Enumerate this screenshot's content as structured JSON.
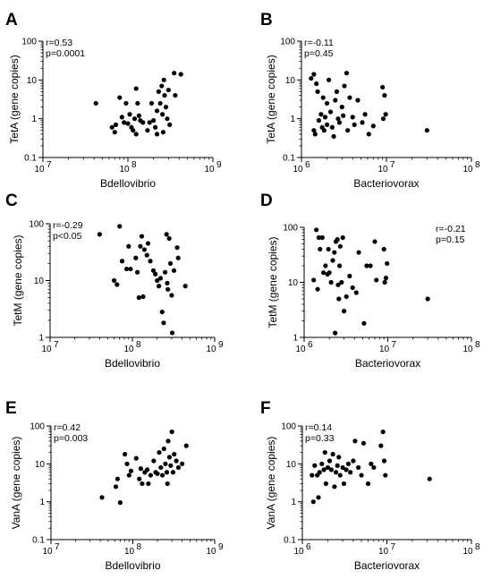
{
  "chart_data": [
    {
      "panel": "A",
      "type": "scatter",
      "xlabel": "Bdellovibrio",
      "ylabel": "TetA (gene copies)",
      "xscale": "log",
      "yscale": "log",
      "xlim": [
        10000000,
        1000000000
      ],
      "ylim": [
        0.1,
        100
      ],
      "xticks": [
        "10",
        "10",
        "10"
      ],
      "xtick_exponents": [
        "7",
        "8",
        "9"
      ],
      "yticks": [
        "100",
        "10",
        "1",
        "0.1"
      ],
      "stats": [
        "r=0.53",
        "p=0.0001"
      ],
      "stats_position": "top-left",
      "grid": false,
      "legend": "none",
      "points": [
        {
          "x": 42000000,
          "y": 2.5
        },
        {
          "x": 65000000,
          "y": 0.6
        },
        {
          "x": 70000000,
          "y": 0.45
        },
        {
          "x": 72000000,
          "y": 0.7
        },
        {
          "x": 80000000,
          "y": 3.5
        },
        {
          "x": 85000000,
          "y": 1.1
        },
        {
          "x": 90000000,
          "y": 0.8
        },
        {
          "x": 95000000,
          "y": 2.5
        },
        {
          "x": 100000000,
          "y": 0.75
        },
        {
          "x": 105000000,
          "y": 1.3
        },
        {
          "x": 110000000,
          "y": 0.6
        },
        {
          "x": 115000000,
          "y": 0.5
        },
        {
          "x": 120000000,
          "y": 1.0
        },
        {
          "x": 125000000,
          "y": 6.0
        },
        {
          "x": 125000000,
          "y": 0.4
        },
        {
          "x": 130000000,
          "y": 2.5
        },
        {
          "x": 135000000,
          "y": 1.2
        },
        {
          "x": 140000000,
          "y": 0.9
        },
        {
          "x": 150000000,
          "y": 0.8
        },
        {
          "x": 170000000,
          "y": 0.5
        },
        {
          "x": 180000000,
          "y": 0.8
        },
        {
          "x": 190000000,
          "y": 2.5
        },
        {
          "x": 200000000,
          "y": 0.9
        },
        {
          "x": 210000000,
          "y": 0.6
        },
        {
          "x": 220000000,
          "y": 1.6
        },
        {
          "x": 220000000,
          "y": 0.4
        },
        {
          "x": 230000000,
          "y": 5.0
        },
        {
          "x": 240000000,
          "y": 2.5
        },
        {
          "x": 250000000,
          "y": 7.0
        },
        {
          "x": 255000000,
          "y": 1.3
        },
        {
          "x": 260000000,
          "y": 0.45
        },
        {
          "x": 265000000,
          "y": 10.0
        },
        {
          "x": 270000000,
          "y": 4.0
        },
        {
          "x": 280000000,
          "y": 2.0
        },
        {
          "x": 290000000,
          "y": 1.0
        },
        {
          "x": 300000000,
          "y": 5.5
        },
        {
          "x": 310000000,
          "y": 0.7
        },
        {
          "x": 350000000,
          "y": 15.0
        },
        {
          "x": 360000000,
          "y": 4.0
        },
        {
          "x": 420000000,
          "y": 14.0
        }
      ]
    },
    {
      "panel": "B",
      "type": "scatter",
      "xlabel": "Bacteriovorax",
      "ylabel": "TetA (gene copies)",
      "xscale": "log",
      "yscale": "log",
      "xlim": [
        1000000,
        100000000
      ],
      "ylim": [
        0.1,
        100
      ],
      "xticks": [
        "10",
        "10",
        "10"
      ],
      "xtick_exponents": [
        "6",
        "7",
        "8"
      ],
      "yticks": [
        "100",
        "10",
        "1",
        "0.1"
      ],
      "stats": [
        "r=-0.11",
        "p=0.45"
      ],
      "stats_position": "top-left",
      "grid": false,
      "legend": "none",
      "points": [
        {
          "x": 1300000,
          "y": 11.0
        },
        {
          "x": 1400000,
          "y": 14.0
        },
        {
          "x": 1400000,
          "y": 0.5
        },
        {
          "x": 1450000,
          "y": 0.4
        },
        {
          "x": 1500000,
          "y": 8.0
        },
        {
          "x": 1550000,
          "y": 5.0
        },
        {
          "x": 1600000,
          "y": 0.9
        },
        {
          "x": 1700000,
          "y": 1.3
        },
        {
          "x": 1750000,
          "y": 0.6
        },
        {
          "x": 1800000,
          "y": 3.5
        },
        {
          "x": 1850000,
          "y": 0.5
        },
        {
          "x": 1900000,
          "y": 1.1
        },
        {
          "x": 2000000,
          "y": 2.5
        },
        {
          "x": 2000000,
          "y": 0.7
        },
        {
          "x": 2100000,
          "y": 10.0
        },
        {
          "x": 2200000,
          "y": 1.5
        },
        {
          "x": 2300000,
          "y": 0.6
        },
        {
          "x": 2400000,
          "y": 0.35
        },
        {
          "x": 2500000,
          "y": 3.0
        },
        {
          "x": 2600000,
          "y": 5.0
        },
        {
          "x": 2700000,
          "y": 1.0
        },
        {
          "x": 2800000,
          "y": 0.8
        },
        {
          "x": 3000000,
          "y": 2.0
        },
        {
          "x": 3100000,
          "y": 1.2
        },
        {
          "x": 3200000,
          "y": 7.0
        },
        {
          "x": 3400000,
          "y": 15.0
        },
        {
          "x": 3500000,
          "y": 0.5
        },
        {
          "x": 3700000,
          "y": 3.5
        },
        {
          "x": 4000000,
          "y": 1.1
        },
        {
          "x": 4200000,
          "y": 0.7
        },
        {
          "x": 4600000,
          "y": 3.0
        },
        {
          "x": 5200000,
          "y": 0.8
        },
        {
          "x": 5600000,
          "y": 1.3
        },
        {
          "x": 6200000,
          "y": 0.4
        },
        {
          "x": 7000000,
          "y": 0.65
        },
        {
          "x": 9000000,
          "y": 6.5
        },
        {
          "x": 9200000,
          "y": 1.0
        },
        {
          "x": 9500000,
          "y": 4.0
        },
        {
          "x": 9800000,
          "y": 1.3
        },
        {
          "x": 30000000,
          "y": 0.5
        }
      ]
    },
    {
      "panel": "C",
      "type": "scatter",
      "xlabel": "Bdellovibrio",
      "ylabel": "TetM (gene copies)",
      "xscale": "log",
      "yscale": "log",
      "xlim": [
        10000000,
        1000000000
      ],
      "ylim": [
        1,
        100
      ],
      "xticks": [
        "10",
        "10",
        "10"
      ],
      "xtick_exponents": [
        "7",
        "8",
        "9"
      ],
      "yticks": [
        "100",
        "10",
        "1"
      ],
      "stats": [
        "r=-0.29",
        "p<0.05"
      ],
      "stats_position": "top-left",
      "grid": false,
      "legend": "none",
      "points": [
        {
          "x": 40000000,
          "y": 65.0
        },
        {
          "x": 60000000,
          "y": 10.0
        },
        {
          "x": 65000000,
          "y": 8.5
        },
        {
          "x": 70000000,
          "y": 90.0
        },
        {
          "x": 75000000,
          "y": 22.0
        },
        {
          "x": 85000000,
          "y": 16.0
        },
        {
          "x": 90000000,
          "y": 40.0
        },
        {
          "x": 95000000,
          "y": 16.0
        },
        {
          "x": 110000000,
          "y": 25.0
        },
        {
          "x": 115000000,
          "y": 14.0
        },
        {
          "x": 120000000,
          "y": 5.0
        },
        {
          "x": 125000000,
          "y": 40.0
        },
        {
          "x": 130000000,
          "y": 60.0
        },
        {
          "x": 135000000,
          "y": 5.2
        },
        {
          "x": 140000000,
          "y": 35.0
        },
        {
          "x": 150000000,
          "y": 28.0
        },
        {
          "x": 155000000,
          "y": 45.0
        },
        {
          "x": 165000000,
          "y": 22.0
        },
        {
          "x": 180000000,
          "y": 15.0
        },
        {
          "x": 190000000,
          "y": 13.0
        },
        {
          "x": 200000000,
          "y": 10.0
        },
        {
          "x": 210000000,
          "y": 8.0
        },
        {
          "x": 220000000,
          "y": 11.0
        },
        {
          "x": 230000000,
          "y": 2.8
        },
        {
          "x": 240000000,
          "y": 1.8
        },
        {
          "x": 250000000,
          "y": 14.0
        },
        {
          "x": 260000000,
          "y": 65.0
        },
        {
          "x": 265000000,
          "y": 9.0
        },
        {
          "x": 270000000,
          "y": 7.0
        },
        {
          "x": 280000000,
          "y": 55.0
        },
        {
          "x": 290000000,
          "y": 20.0
        },
        {
          "x": 300000000,
          "y": 5.5
        },
        {
          "x": 305000000,
          "y": 1.2
        },
        {
          "x": 320000000,
          "y": 15.0
        },
        {
          "x": 350000000,
          "y": 38.0
        },
        {
          "x": 360000000,
          "y": 25.0
        },
        {
          "x": 440000000,
          "y": 8.0
        }
      ]
    },
    {
      "panel": "D",
      "type": "scatter",
      "xlabel": "Bacteriovorax",
      "ylabel": "TetM (gene copies)",
      "xscale": "log",
      "yscale": "log",
      "xlim": [
        1000000,
        100000000
      ],
      "ylim": [
        1,
        100
      ],
      "xticks": [
        "10",
        "10",
        "10"
      ],
      "xtick_exponents": [
        "6",
        "7",
        "8"
      ],
      "yticks": [
        "100",
        "10",
        "1"
      ],
      "stats": [
        "r=-0.21",
        "p=0.15"
      ],
      "stats_position": "top-right",
      "grid": false,
      "legend": "none",
      "points": [
        {
          "x": 1300000,
          "y": 11.0
        },
        {
          "x": 1400000,
          "y": 90.0
        },
        {
          "x": 1450000,
          "y": 7.5
        },
        {
          "x": 1500000,
          "y": 65.0
        },
        {
          "x": 1550000,
          "y": 40.0
        },
        {
          "x": 1650000,
          "y": 65.0
        },
        {
          "x": 1700000,
          "y": 15.0
        },
        {
          "x": 1800000,
          "y": 20.0
        },
        {
          "x": 1900000,
          "y": 14.0
        },
        {
          "x": 1950000,
          "y": 40.0
        },
        {
          "x": 2000000,
          "y": 15.0
        },
        {
          "x": 2100000,
          "y": 10.0
        },
        {
          "x": 2200000,
          "y": 25.0
        },
        {
          "x": 2300000,
          "y": 35.0
        },
        {
          "x": 2350000,
          "y": 1.2
        },
        {
          "x": 2400000,
          "y": 55.0
        },
        {
          "x": 2500000,
          "y": 60.0
        },
        {
          "x": 2550000,
          "y": 9.0
        },
        {
          "x": 2600000,
          "y": 5.0
        },
        {
          "x": 2650000,
          "y": 20.0
        },
        {
          "x": 2700000,
          "y": 45.0
        },
        {
          "x": 2800000,
          "y": 10.0
        },
        {
          "x": 2900000,
          "y": 65.0
        },
        {
          "x": 3000000,
          "y": 3.0
        },
        {
          "x": 3200000,
          "y": 5.5
        },
        {
          "x": 3500000,
          "y": 13.0
        },
        {
          "x": 3800000,
          "y": 8.0
        },
        {
          "x": 4200000,
          "y": 6.5
        },
        {
          "x": 4500000,
          "y": 35.0
        },
        {
          "x": 5200000,
          "y": 1.8
        },
        {
          "x": 5600000,
          "y": 20.0
        },
        {
          "x": 6200000,
          "y": 20.0
        },
        {
          "x": 7000000,
          "y": 55.0
        },
        {
          "x": 7300000,
          "y": 11.0
        },
        {
          "x": 9000000,
          "y": 40.0
        },
        {
          "x": 9200000,
          "y": 10.0
        },
        {
          "x": 9500000,
          "y": 12.0
        },
        {
          "x": 9800000,
          "y": 22.0
        },
        {
          "x": 30000000,
          "y": 5.0
        }
      ]
    },
    {
      "panel": "E",
      "type": "scatter",
      "xlabel": "Bdellovibrio",
      "ylabel": "VanA (gene copies)",
      "xscale": "log",
      "yscale": "log",
      "xlim": [
        10000000,
        1000000000
      ],
      "ylim": [
        0.1,
        100
      ],
      "xticks": [
        "10",
        "10",
        "10"
      ],
      "xtick_exponents": [
        "7",
        "8",
        "9"
      ],
      "yticks": [
        "100",
        "10",
        "1",
        "0.1"
      ],
      "stats": [
        "r=0.42",
        "p=0.003"
      ],
      "stats_position": "top-left",
      "grid": false,
      "legend": "none",
      "points": [
        {
          "x": 42000000,
          "y": 1.3
        },
        {
          "x": 62000000,
          "y": 2.5
        },
        {
          "x": 65000000,
          "y": 4.0
        },
        {
          "x": 70000000,
          "y": 0.95
        },
        {
          "x": 80000000,
          "y": 18.0
        },
        {
          "x": 85000000,
          "y": 10.0
        },
        {
          "x": 90000000,
          "y": 5.0
        },
        {
          "x": 95000000,
          "y": 6.5
        },
        {
          "x": 110000000,
          "y": 14.0
        },
        {
          "x": 120000000,
          "y": 4.0
        },
        {
          "x": 125000000,
          "y": 7.5
        },
        {
          "x": 130000000,
          "y": 3.0
        },
        {
          "x": 140000000,
          "y": 6.0
        },
        {
          "x": 150000000,
          "y": 7.0
        },
        {
          "x": 155000000,
          "y": 3.0
        },
        {
          "x": 165000000,
          "y": 5.0
        },
        {
          "x": 180000000,
          "y": 12.0
        },
        {
          "x": 190000000,
          "y": 6.0
        },
        {
          "x": 200000000,
          "y": 5.5
        },
        {
          "x": 210000000,
          "y": 20.0
        },
        {
          "x": 220000000,
          "y": 8.0
        },
        {
          "x": 230000000,
          "y": 5.0
        },
        {
          "x": 240000000,
          "y": 25.0
        },
        {
          "x": 250000000,
          "y": 10.0
        },
        {
          "x": 260000000,
          "y": 6.0
        },
        {
          "x": 265000000,
          "y": 3.0
        },
        {
          "x": 270000000,
          "y": 40.0
        },
        {
          "x": 280000000,
          "y": 15.0
        },
        {
          "x": 290000000,
          "y": 9.0
        },
        {
          "x": 300000000,
          "y": 70.0
        },
        {
          "x": 310000000,
          "y": 6.0
        },
        {
          "x": 320000000,
          "y": 18.0
        },
        {
          "x": 340000000,
          "y": 12.0
        },
        {
          "x": 360000000,
          "y": 8.0
        },
        {
          "x": 400000000,
          "y": 10.0
        },
        {
          "x": 450000000,
          "y": 30.0
        }
      ]
    },
    {
      "panel": "F",
      "type": "scatter",
      "xlabel": "Bacteriovorax",
      "ylabel": "VanA (gene copies)",
      "xscale": "log",
      "yscale": "log",
      "xlim": [
        1000000,
        100000000
      ],
      "ylim": [
        0.1,
        100
      ],
      "xticks": [
        "10",
        "10",
        "10"
      ],
      "xtick_exponents": [
        "6",
        "7",
        "8"
      ],
      "yticks": [
        "100",
        "10",
        "1",
        "0.1"
      ],
      "stats": [
        "r=0.14",
        "p=0.33"
      ],
      "stats_position": "top-left",
      "grid": false,
      "legend": "none",
      "points": [
        {
          "x": 1300000,
          "y": 5.0
        },
        {
          "x": 1350000,
          "y": 1.0
        },
        {
          "x": 1400000,
          "y": 9.0
        },
        {
          "x": 1500000,
          "y": 5.0
        },
        {
          "x": 1550000,
          "y": 1.3
        },
        {
          "x": 1600000,
          "y": 6.0
        },
        {
          "x": 1700000,
          "y": 10.0
        },
        {
          "x": 1800000,
          "y": 7.0
        },
        {
          "x": 1850000,
          "y": 20.0
        },
        {
          "x": 1900000,
          "y": 3.0
        },
        {
          "x": 2000000,
          "y": 8.0
        },
        {
          "x": 2100000,
          "y": 12.0
        },
        {
          "x": 2200000,
          "y": 7.0
        },
        {
          "x": 2300000,
          "y": 18.0
        },
        {
          "x": 2400000,
          "y": 2.5
        },
        {
          "x": 2500000,
          "y": 6.0
        },
        {
          "x": 2600000,
          "y": 9.0
        },
        {
          "x": 2700000,
          "y": 15.0
        },
        {
          "x": 2800000,
          "y": 5.0
        },
        {
          "x": 3000000,
          "y": 8.0
        },
        {
          "x": 3100000,
          "y": 3.0
        },
        {
          "x": 3300000,
          "y": 7.0
        },
        {
          "x": 3500000,
          "y": 10.0
        },
        {
          "x": 3700000,
          "y": 6.0
        },
        {
          "x": 4000000,
          "y": 12.0
        },
        {
          "x": 4200000,
          "y": 40.0
        },
        {
          "x": 4600000,
          "y": 8.0
        },
        {
          "x": 5000000,
          "y": 5.0
        },
        {
          "x": 5300000,
          "y": 35.0
        },
        {
          "x": 6000000,
          "y": 3.0
        },
        {
          "x": 6500000,
          "y": 10.0
        },
        {
          "x": 7000000,
          "y": 8.0
        },
        {
          "x": 8500000,
          "y": 30.0
        },
        {
          "x": 9000000,
          "y": 70.0
        },
        {
          "x": 9300000,
          "y": 12.0
        },
        {
          "x": 9600000,
          "y": 5.0
        },
        {
          "x": 32000000,
          "y": 4.0
        }
      ]
    }
  ]
}
